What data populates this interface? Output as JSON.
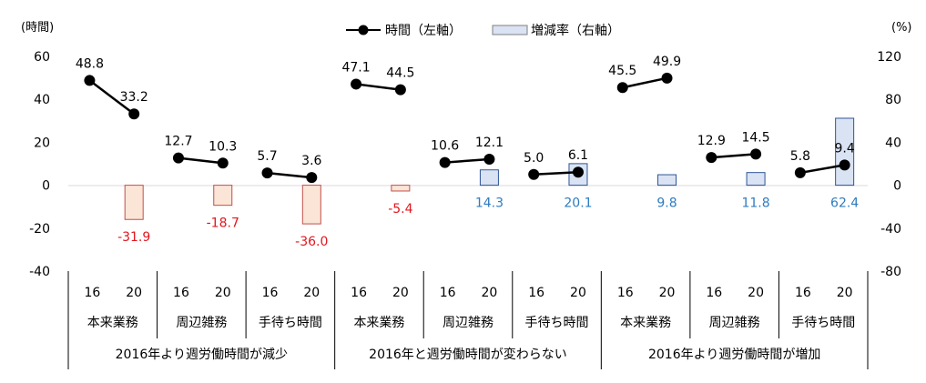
{
  "chart_data": {
    "type": "bar",
    "left_axis": {
      "unit_label": "(時間)",
      "ylim": [
        -40,
        60
      ],
      "ticks": [
        "60",
        "40",
        "20",
        "0",
        "-20",
        "-40"
      ]
    },
    "right_axis": {
      "unit_label": "(%)",
      "ylim": [
        -80,
        120
      ],
      "ticks": [
        "120",
        "80",
        "40",
        "0",
        "-40",
        "-80"
      ]
    },
    "legend": {
      "position": "top-center",
      "line_label": "時間（左軸）",
      "bar_label": "増減率（右軸）"
    },
    "year_labels": [
      "16",
      "20"
    ],
    "groups": [
      {
        "name": "2016年より週労働時間が減少"
      },
      {
        "name": "2016年と週労働時間が変わらない"
      },
      {
        "name": "2016年より週労働時間が増加"
      }
    ],
    "subgroups": [
      {
        "group": 0,
        "name": "本来業務",
        "hours_16": 48.8,
        "hours_20": 33.2,
        "hours_16_label": "48.8",
        "hours_20_label": "33.2",
        "change_pct": -31.9,
        "change_label": "-31.9"
      },
      {
        "group": 0,
        "name": "周辺雑務",
        "hours_16": 12.7,
        "hours_20": 10.3,
        "hours_16_label": "12.7",
        "hours_20_label": "10.3",
        "change_pct": -18.7,
        "change_label": "-18.7"
      },
      {
        "group": 0,
        "name": "手待ち時間",
        "hours_16": 5.7,
        "hours_20": 3.6,
        "hours_16_label": "5.7",
        "hours_20_label": "3.6",
        "change_pct": -36.0,
        "change_label": "-36.0"
      },
      {
        "group": 1,
        "name": "本来業務",
        "hours_16": 47.1,
        "hours_20": 44.5,
        "hours_16_label": "47.1",
        "hours_20_label": "44.5",
        "change_pct": -5.4,
        "change_label": "-5.4"
      },
      {
        "group": 1,
        "name": "周辺雑務",
        "hours_16": 10.6,
        "hours_20": 12.1,
        "hours_16_label": "10.6",
        "hours_20_label": "12.1",
        "change_pct": 14.3,
        "change_label": "14.3"
      },
      {
        "group": 1,
        "name": "手待ち時間",
        "hours_16": 5.0,
        "hours_20": 6.1,
        "hours_16_label": "5.0",
        "hours_20_label": "6.1",
        "change_pct": 20.1,
        "change_label": "20.1"
      },
      {
        "group": 2,
        "name": "本来業務",
        "hours_16": 45.5,
        "hours_20": 49.9,
        "hours_16_label": "45.5",
        "hours_20_label": "49.9",
        "change_pct": 9.8,
        "change_label": "9.8"
      },
      {
        "group": 2,
        "name": "周辺雑務",
        "hours_16": 12.9,
        "hours_20": 14.5,
        "hours_16_label": "12.9",
        "hours_20_label": "14.5",
        "change_pct": 11.8,
        "change_label": "11.8"
      },
      {
        "group": 2,
        "name": "手待ち時間",
        "hours_16": 5.8,
        "hours_20": 9.4,
        "hours_16_label": "5.8",
        "hours_20_label": "9.4",
        "change_pct": 62.4,
        "change_label": "62.4"
      }
    ],
    "colors": {
      "line": "#000000",
      "bar_negative_fill": "#fbe5d6",
      "bar_negative_stroke": "#c0504d",
      "bar_positive_fill": "#dae3f3",
      "bar_positive_stroke": "#2f5597",
      "label_negative": "#e0171e",
      "label_positive": "#2e7cc0"
    },
    "grid": false
  }
}
